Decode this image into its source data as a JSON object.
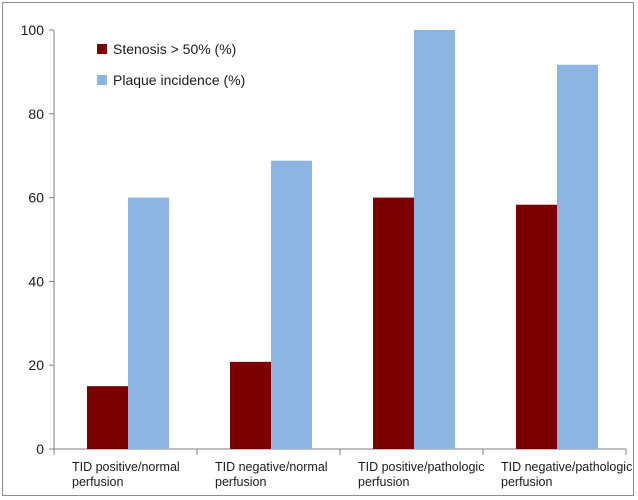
{
  "chart_data": {
    "type": "bar",
    "categories": [
      [
        "TID positive/normal",
        "perfusion"
      ],
      [
        "TID negative/normal",
        "perfusion"
      ],
      [
        "TID positive/pathologic",
        "perfusion"
      ],
      [
        "TID negative/pathologic",
        "perfusion"
      ]
    ],
    "series": [
      {
        "name": "Stenosis > 50% (%)",
        "color": "#7b0000",
        "values": [
          15,
          20.8,
          60,
          58.3
        ]
      },
      {
        "name": "Plaque incidence (%)",
        "color": "#8eb4e3",
        "values": [
          60,
          68.8,
          100,
          91.7
        ]
      }
    ],
    "ylim": [
      0,
      100
    ],
    "yticks": [
      0,
      20,
      40,
      60,
      80,
      100
    ],
    "grid": false,
    "legend_position": "top-left"
  }
}
